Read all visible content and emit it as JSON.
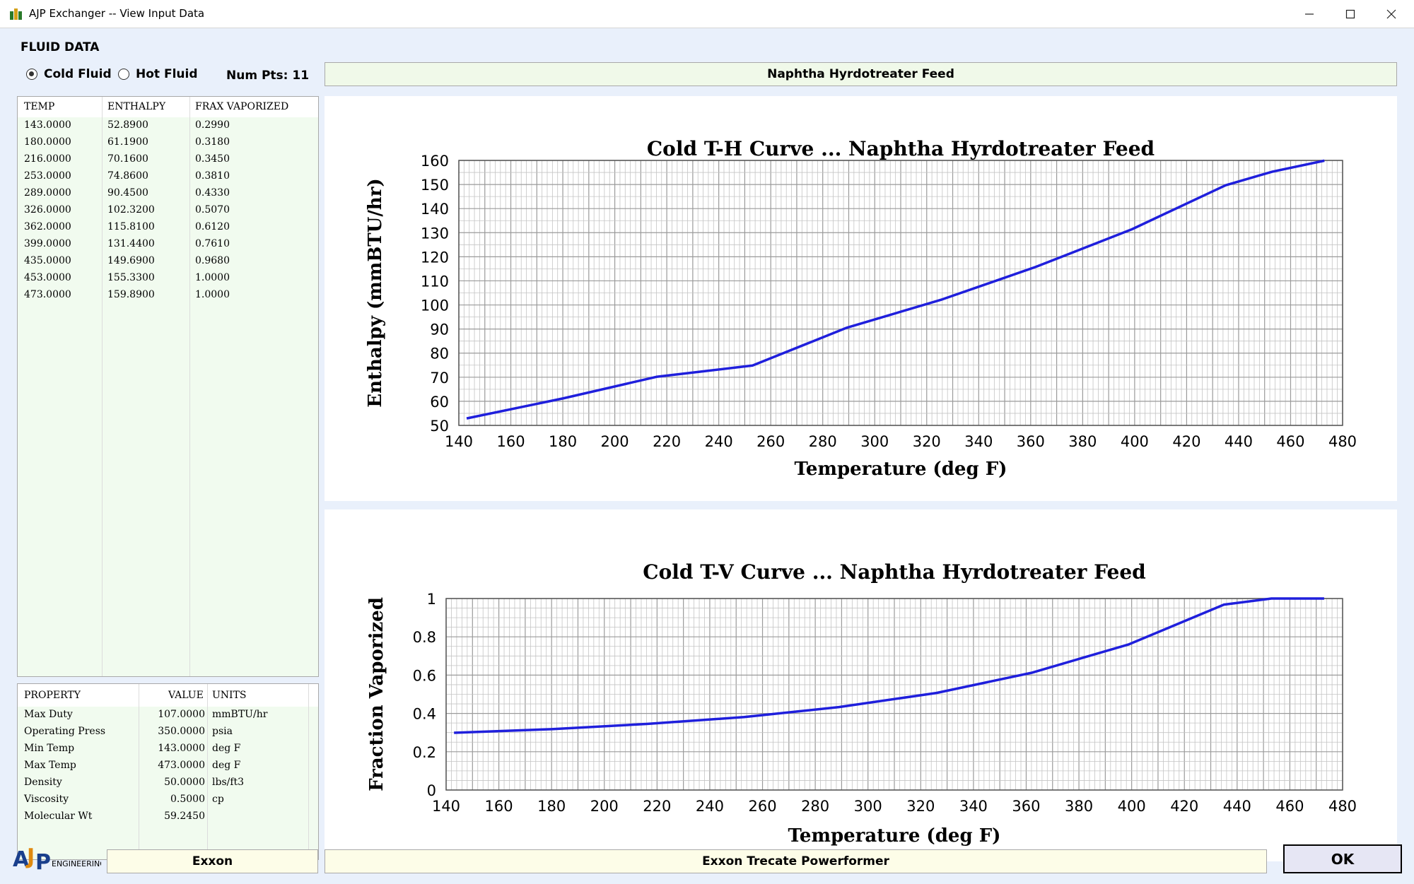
{
  "window": {
    "title": "AJP Exchanger  -- View Input Data",
    "minimize_icon": "minimize-icon",
    "maximize_icon": "maximize-icon",
    "close_icon": "close-icon"
  },
  "fluid_section": {
    "title": "FLUID DATA",
    "radio_cold": "Cold Fluid",
    "radio_hot": "Hot Fluid",
    "selected": "Cold Fluid",
    "num_pts": "Num Pts: 11",
    "stream_name": "Naphtha Hyrdotreater Feed"
  },
  "data_grid": {
    "headers": [
      "TEMP",
      "ENTHALPY",
      "FRAX VAPORIZED"
    ],
    "rows": [
      [
        "143.0000",
        "52.8900",
        "0.2990"
      ],
      [
        "180.0000",
        "61.1900",
        "0.3180"
      ],
      [
        "216.0000",
        "70.1600",
        "0.3450"
      ],
      [
        "253.0000",
        "74.8600",
        "0.3810"
      ],
      [
        "289.0000",
        "90.4500",
        "0.4330"
      ],
      [
        "326.0000",
        "102.3200",
        "0.5070"
      ],
      [
        "362.0000",
        "115.8100",
        "0.6120"
      ],
      [
        "399.0000",
        "131.4400",
        "0.7610"
      ],
      [
        "435.0000",
        "149.6900",
        "0.9680"
      ],
      [
        "453.0000",
        "155.3300",
        "1.0000"
      ],
      [
        "473.0000",
        "159.8900",
        "1.0000"
      ]
    ]
  },
  "property_grid": {
    "headers": [
      "PROPERTY",
      "VALUE",
      "UNITS"
    ],
    "rows": [
      [
        "Max Duty",
        "107.0000",
        "mmBTU/hr"
      ],
      [
        "Operating Press",
        "350.0000",
        "psia"
      ],
      [
        "Min Temp",
        "143.0000",
        "deg F"
      ],
      [
        "Max Temp",
        "473.0000",
        "deg F"
      ],
      [
        "Density",
        "50.0000",
        "lbs/ft3"
      ],
      [
        "Viscosity",
        "0.5000",
        "cp"
      ],
      [
        "Molecular Wt",
        "59.2450",
        ""
      ]
    ]
  },
  "chart_data": [
    {
      "type": "line",
      "title": "Cold T-H Curve ... Naphtha Hyrdotreater Feed",
      "xlabel": "Temperature (deg F)",
      "ylabel": "Enthalpy (mmBTU/hr)",
      "xlim": [
        140,
        480
      ],
      "ylim": [
        50,
        160
      ],
      "x_ticks": [
        "140",
        "160",
        "180",
        "200",
        "220",
        "240",
        "260",
        "280",
        "300",
        "320",
        "340",
        "360",
        "380",
        "400",
        "420",
        "440",
        "460",
        "480"
      ],
      "y_ticks": [
        "50",
        "60",
        "70",
        "80",
        "90",
        "100",
        "110",
        "120",
        "130",
        "140",
        "150",
        "160"
      ],
      "grid": true,
      "line_color": "#1f1fdc",
      "x": [
        143,
        180,
        216,
        253,
        289,
        326,
        362,
        399,
        435,
        453,
        473
      ],
      "y": [
        52.89,
        61.19,
        70.16,
        74.86,
        90.45,
        102.32,
        115.81,
        131.44,
        149.69,
        155.33,
        159.89
      ]
    },
    {
      "type": "line",
      "title": "Cold T-V Curve ... Naphtha Hyrdotreater Feed",
      "xlabel": "Temperature (deg F)",
      "ylabel": "Fraction Vaporized",
      "xlim": [
        140,
        480
      ],
      "ylim": [
        0,
        1
      ],
      "x_ticks": [
        "140",
        "160",
        "180",
        "200",
        "220",
        "240",
        "260",
        "280",
        "300",
        "320",
        "340",
        "360",
        "380",
        "400",
        "420",
        "440",
        "460",
        "480"
      ],
      "y_ticks": [
        "0",
        "0.2",
        "0.4",
        "0.6",
        "0.8",
        "1"
      ],
      "grid": true,
      "line_color": "#1f1fdc",
      "x": [
        143,
        180,
        216,
        253,
        289,
        326,
        362,
        399,
        435,
        453,
        473
      ],
      "y": [
        0.299,
        0.318,
        0.345,
        0.381,
        0.433,
        0.507,
        0.612,
        0.761,
        0.968,
        1.0,
        1.0
      ]
    }
  ],
  "footer": {
    "logo_text": "ENGINEERING",
    "logo_name": "ajp-engineering-logo",
    "company": "Exxon",
    "project": "Exxon Trecate Powerformer",
    "ok_label": "OK"
  }
}
